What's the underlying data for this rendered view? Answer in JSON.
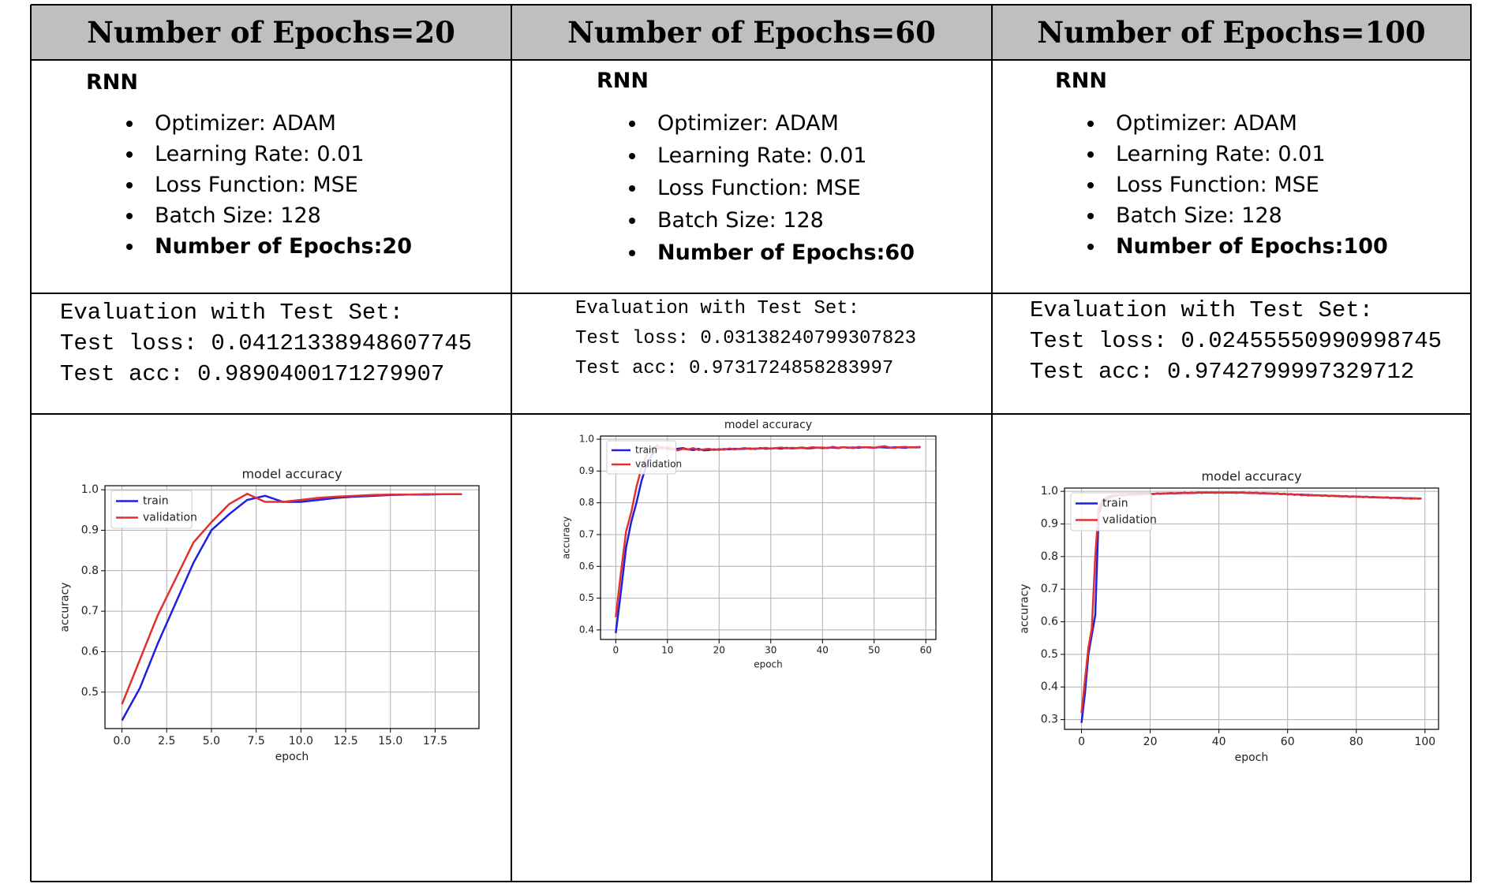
{
  "table": {
    "columns": [
      {
        "header": "Number of Epochs=20",
        "model": "RNN",
        "settings": [
          "Optimizer: ADAM",
          "Learning Rate: 0.01",
          "Loss Function: MSE",
          "Batch Size: 128",
          "Number of Epochs:20"
        ],
        "evaluation": [
          "Evaluation with Test Set:",
          "Test loss: 0.04121338948607745",
          "Test acc: 0.9890400171279907"
        ]
      },
      {
        "header": "Number of Epochs=60",
        "model": "RNN",
        "settings": [
          "Optimizer: ADAM",
          "Learning Rate: 0.01",
          "Loss Function: MSE",
          "Batch Size: 128",
          "Number of Epochs:60"
        ],
        "evaluation": [
          "Evaluation with Test Set:",
          "Test loss: 0.03138240799307823",
          "Test acc: 0.9731724858283997"
        ]
      },
      {
        "header": "Number of Epochs=100",
        "model": "RNN",
        "settings": [
          "Optimizer: ADAM",
          "Learning Rate: 0.01",
          "Loss Function: MSE",
          "Batch Size: 128",
          "Number of Epochs:100"
        ],
        "evaluation": [
          "Evaluation with Test Set:",
          "Test loss: 0.02455550990998745",
          "Test acc: 0.9742799997329712"
        ]
      }
    ]
  },
  "chart_data": [
    {
      "type": "line",
      "title": "model accuracy",
      "x_label": "epoch",
      "y_label": "accuracy",
      "grid": true,
      "legend": "upper left",
      "x": [
        0,
        1,
        2,
        3,
        4,
        5,
        6,
        7,
        8,
        9,
        10,
        11,
        12,
        13,
        14,
        15,
        16,
        17,
        18,
        19
      ],
      "series": [
        {
          "name": "train",
          "color": "#1f1fe0",
          "values": [
            0.43,
            0.51,
            0.62,
            0.72,
            0.82,
            0.9,
            0.94,
            0.975,
            0.985,
            0.97,
            0.97,
            0.975,
            0.98,
            0.983,
            0.985,
            0.987,
            0.988,
            0.988,
            0.989,
            0.989
          ]
        },
        {
          "name": "validation",
          "color": "#e03030",
          "values": [
            0.47,
            0.58,
            0.69,
            0.78,
            0.87,
            0.92,
            0.965,
            0.99,
            0.97,
            0.97,
            0.975,
            0.98,
            0.983,
            0.985,
            0.987,
            0.988,
            0.988,
            0.989,
            0.989,
            0.989
          ]
        }
      ],
      "xlim": [
        -0.95,
        19.95
      ],
      "xticks": [
        {
          "value": 0,
          "label": "0.0"
        },
        2.5,
        {
          "value": 5,
          "label": "5.0"
        },
        7.5,
        {
          "value": 10,
          "label": "10.0"
        },
        12.5,
        {
          "value": 15,
          "label": "15.0"
        },
        17.5
      ],
      "ylim": [
        0.41,
        1.01
      ],
      "yticks": [
        0.5,
        0.6,
        0.7,
        0.8,
        0.9,
        {
          "value": 1,
          "label": "1.0"
        }
      ]
    },
    {
      "type": "line",
      "title": "model accuracy",
      "x_label": "epoch",
      "y_label": "accuracy",
      "grid": true,
      "legend": "upper left",
      "x": [
        0,
        1,
        2,
        3,
        4,
        5,
        6,
        7,
        8,
        9,
        10,
        11,
        12,
        13,
        14,
        15,
        16,
        17,
        18,
        19,
        20,
        21,
        22,
        23,
        24,
        25,
        26,
        27,
        28,
        29,
        30,
        31,
        32,
        33,
        34,
        35,
        36,
        37,
        38,
        39,
        40,
        41,
        42,
        43,
        44,
        45,
        46,
        47,
        48,
        49,
        50,
        51,
        52,
        53,
        54,
        55,
        56,
        57,
        58,
        59
      ],
      "series": [
        {
          "name": "train",
          "color": "#1f1fe0",
          "values": [
            0.39,
            0.52,
            0.66,
            0.74,
            0.8,
            0.87,
            0.92,
            0.95,
            0.97,
            0.975,
            0.97,
            0.968,
            0.97,
            0.972,
            0.968,
            0.966,
            0.97,
            0.965,
            0.966,
            0.968,
            0.967,
            0.969,
            0.968,
            0.97,
            0.969,
            0.97,
            0.971,
            0.969,
            0.972,
            0.97,
            0.971,
            0.972,
            0.97,
            0.973,
            0.971,
            0.972,
            0.973,
            0.971,
            0.972,
            0.974,
            0.972,
            0.973,
            0.974,
            0.972,
            0.975,
            0.973,
            0.974,
            0.973,
            0.975,
            0.974,
            0.973,
            0.975,
            0.974,
            0.973,
            0.975,
            0.974,
            0.973,
            0.975,
            0.974,
            0.975
          ]
        },
        {
          "name": "validation",
          "color": "#e03030",
          "values": [
            0.44,
            0.58,
            0.71,
            0.77,
            0.85,
            0.91,
            0.95,
            0.97,
            0.98,
            0.97,
            0.975,
            0.97,
            0.965,
            0.97,
            0.968,
            0.972,
            0.966,
            0.968,
            0.97,
            0.966,
            0.969,
            0.967,
            0.971,
            0.968,
            0.97,
            0.972,
            0.969,
            0.971,
            0.97,
            0.973,
            0.97,
            0.972,
            0.974,
            0.971,
            0.973,
            0.972,
            0.974,
            0.972,
            0.975,
            0.973,
            0.974,
            0.972,
            0.976,
            0.973,
            0.975,
            0.974,
            0.972,
            0.976,
            0.974,
            0.975,
            0.973,
            0.976,
            0.978,
            0.974,
            0.973,
            0.975,
            0.976,
            0.974,
            0.975,
            0.976
          ]
        }
      ],
      "xlim": [
        -2.95,
        61.95
      ],
      "xticks": [
        0,
        10,
        20,
        30,
        40,
        50,
        60
      ],
      "ylim": [
        0.37,
        1.01
      ],
      "yticks": [
        0.4,
        0.5,
        0.6,
        0.7,
        0.8,
        0.9,
        {
          "value": 1,
          "label": "1.0"
        }
      ]
    },
    {
      "type": "line",
      "title": "model accuracy",
      "x_label": "epoch",
      "y_label": "accuracy",
      "grid": true,
      "legend": "upper left",
      "x": [
        0,
        1,
        2,
        3,
        4,
        5,
        6,
        7,
        8,
        9,
        10,
        11,
        12,
        13,
        14,
        15,
        16,
        17,
        18,
        19,
        20,
        21,
        22,
        23,
        24,
        25,
        26,
        27,
        28,
        29,
        30,
        31,
        32,
        33,
        34,
        35,
        36,
        37,
        38,
        39,
        40,
        41,
        42,
        43,
        44,
        45,
        46,
        47,
        48,
        49,
        50,
        51,
        52,
        53,
        54,
        55,
        56,
        57,
        58,
        59,
        60,
        61,
        62,
        63,
        64,
        65,
        66,
        67,
        68,
        69,
        70,
        71,
        72,
        73,
        74,
        75,
        76,
        77,
        78,
        79,
        80,
        81,
        82,
        83,
        84,
        85,
        86,
        87,
        88,
        89,
        90,
        91,
        92,
        93,
        94,
        95,
        96,
        97,
        98,
        99
      ],
      "series": [
        {
          "name": "train",
          "color": "#1f1fe0",
          "values": [
            0.29,
            0.38,
            0.5,
            0.56,
            0.62,
            0.93,
            0.96,
            0.975,
            0.98,
            0.985,
            0.987,
            0.988,
            0.988,
            0.989,
            0.99,
            0.99,
            0.99,
            0.991,
            0.991,
            0.992,
            0.992,
            0.992,
            0.993,
            0.993,
            0.993,
            0.994,
            0.994,
            0.994,
            0.994,
            0.995,
            0.995,
            0.995,
            0.995,
            0.995,
            0.996,
            0.996,
            0.996,
            0.996,
            0.996,
            0.996,
            0.996,
            0.996,
            0.996,
            0.996,
            0.996,
            0.996,
            0.996,
            0.996,
            0.995,
            0.995,
            0.995,
            0.995,
            0.994,
            0.994,
            0.994,
            0.993,
            0.993,
            0.993,
            0.992,
            0.992,
            0.991,
            0.991,
            0.99,
            0.99,
            0.99,
            0.989,
            0.989,
            0.988,
            0.988,
            0.988,
            0.987,
            0.987,
            0.986,
            0.986,
            0.986,
            0.985,
            0.985,
            0.985,
            0.984,
            0.984,
            0.984,
            0.983,
            0.983,
            0.983,
            0.982,
            0.982,
            0.982,
            0.981,
            0.981,
            0.981,
            0.98,
            0.98,
            0.98,
            0.98,
            0.979,
            0.979,
            0.979,
            0.978,
            0.978,
            0.978
          ]
        },
        {
          "name": "validation",
          "color": "#e03030",
          "values": [
            0.32,
            0.42,
            0.52,
            0.58,
            0.8,
            0.95,
            0.97,
            0.98,
            0.985,
            0.988,
            0.989,
            0.987,
            0.99,
            0.988,
            0.991,
            0.989,
            0.992,
            0.99,
            0.992,
            0.991,
            0.993,
            0.991,
            0.994,
            0.992,
            0.994,
            0.993,
            0.995,
            0.993,
            0.995,
            0.994,
            0.996,
            0.994,
            0.996,
            0.995,
            0.997,
            0.995,
            0.997,
            0.996,
            0.997,
            0.995,
            0.997,
            0.995,
            0.997,
            0.996,
            0.997,
            0.995,
            0.996,
            0.997,
            0.995,
            0.996,
            0.994,
            0.996,
            0.993,
            0.995,
            0.993,
            0.994,
            0.992,
            0.994,
            0.991,
            0.993,
            0.99,
            0.992,
            0.989,
            0.991,
            0.988,
            0.99,
            0.987,
            0.989,
            0.987,
            0.988,
            0.986,
            0.988,
            0.985,
            0.987,
            0.985,
            0.986,
            0.984,
            0.986,
            0.983,
            0.985,
            0.983,
            0.984,
            0.982,
            0.984,
            0.981,
            0.983,
            0.981,
            0.982,
            0.98,
            0.982,
            0.979,
            0.981,
            0.979,
            0.98,
            0.978,
            0.979,
            0.977,
            0.979,
            0.977,
            0.978
          ]
        }
      ],
      "xlim": [
        -4.95,
        103.95
      ],
      "xticks": [
        0,
        20,
        40,
        60,
        80,
        100
      ],
      "ylim": [
        0.27,
        1.01
      ],
      "yticks": [
        0.3,
        0.4,
        0.5,
        0.6,
        0.7,
        0.8,
        0.9,
        {
          "value": 1,
          "label": "1.0"
        }
      ]
    }
  ]
}
